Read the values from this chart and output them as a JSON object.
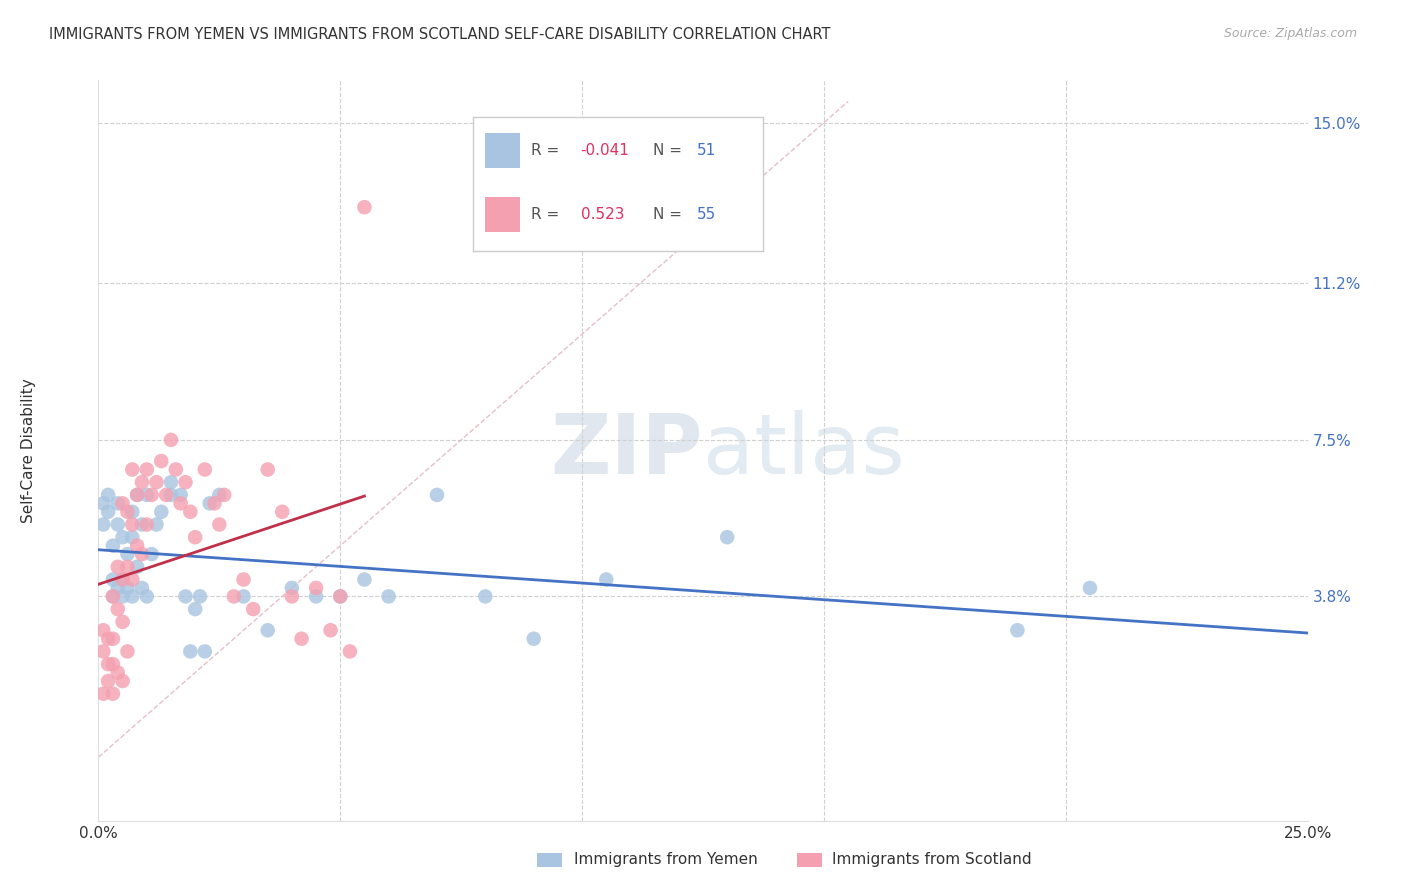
{
  "title": "IMMIGRANTS FROM YEMEN VS IMMIGRANTS FROM SCOTLAND SELF-CARE DISABILITY CORRELATION CHART",
  "source": "Source: ZipAtlas.com",
  "ylabel": "Self-Care Disability",
  "xlim": [
    0.0,
    0.25
  ],
  "ylim": [
    -0.015,
    0.16
  ],
  "yticks": [
    0.038,
    0.075,
    0.112,
    0.15
  ],
  "ytick_labels": [
    "3.8%",
    "7.5%",
    "11.2%",
    "15.0%"
  ],
  "R_yemen": -0.041,
  "N_yemen": 51,
  "R_scotland": 0.523,
  "N_scotland": 55,
  "color_yemen": "#a8c4e0",
  "color_scotland": "#f4a0b0",
  "line_color_yemen": "#4472c4",
  "line_color_scotland": "#c0304a",
  "diagonal_color": "#e0b0b8",
  "yemen_x": [
    0.001,
    0.001,
    0.002,
    0.002,
    0.003,
    0.003,
    0.003,
    0.004,
    0.004,
    0.004,
    0.005,
    0.005,
    0.005,
    0.006,
    0.006,
    0.007,
    0.007,
    0.007,
    0.008,
    0.008,
    0.009,
    0.009,
    0.01,
    0.01,
    0.011,
    0.012,
    0.013,
    0.015,
    0.015,
    0.017,
    0.018,
    0.019,
    0.02,
    0.021,
    0.022,
    0.023,
    0.025,
    0.03,
    0.035,
    0.04,
    0.045,
    0.05,
    0.055,
    0.06,
    0.07,
    0.08,
    0.09,
    0.105,
    0.13,
    0.19,
    0.205
  ],
  "yemen_y": [
    0.055,
    0.06,
    0.058,
    0.062,
    0.038,
    0.042,
    0.05,
    0.04,
    0.055,
    0.06,
    0.038,
    0.042,
    0.052,
    0.04,
    0.048,
    0.038,
    0.052,
    0.058,
    0.045,
    0.062,
    0.04,
    0.055,
    0.038,
    0.062,
    0.048,
    0.055,
    0.058,
    0.062,
    0.065,
    0.062,
    0.038,
    0.025,
    0.035,
    0.038,
    0.025,
    0.06,
    0.062,
    0.038,
    0.03,
    0.04,
    0.038,
    0.038,
    0.042,
    0.038,
    0.062,
    0.038,
    0.028,
    0.042,
    0.052,
    0.03,
    0.04
  ],
  "scotland_x": [
    0.001,
    0.001,
    0.001,
    0.002,
    0.002,
    0.002,
    0.003,
    0.003,
    0.003,
    0.003,
    0.004,
    0.004,
    0.004,
    0.005,
    0.005,
    0.005,
    0.005,
    0.006,
    0.006,
    0.006,
    0.007,
    0.007,
    0.007,
    0.008,
    0.008,
    0.009,
    0.009,
    0.01,
    0.01,
    0.011,
    0.012,
    0.013,
    0.014,
    0.015,
    0.016,
    0.017,
    0.018,
    0.019,
    0.02,
    0.022,
    0.024,
    0.025,
    0.026,
    0.028,
    0.03,
    0.032,
    0.035,
    0.038,
    0.04,
    0.042,
    0.045,
    0.048,
    0.05,
    0.052,
    0.055
  ],
  "scotland_y": [
    0.025,
    0.03,
    0.015,
    0.028,
    0.018,
    0.022,
    0.038,
    0.028,
    0.022,
    0.015,
    0.045,
    0.035,
    0.02,
    0.06,
    0.042,
    0.032,
    0.018,
    0.058,
    0.045,
    0.025,
    0.068,
    0.055,
    0.042,
    0.062,
    0.05,
    0.065,
    0.048,
    0.068,
    0.055,
    0.062,
    0.065,
    0.07,
    0.062,
    0.075,
    0.068,
    0.06,
    0.065,
    0.058,
    0.052,
    0.068,
    0.06,
    0.055,
    0.062,
    0.038,
    0.042,
    0.035,
    0.068,
    0.058,
    0.038,
    0.028,
    0.04,
    0.03,
    0.038,
    0.025,
    0.13
  ]
}
